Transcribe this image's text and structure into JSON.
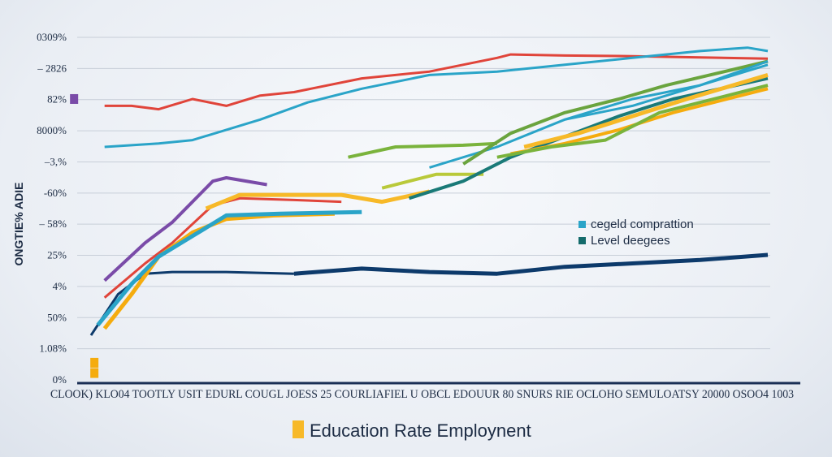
{
  "chart_data": {
    "type": "line",
    "title": "Education Rate Employnent",
    "ylabel": "ONGTIE% ADIE",
    "xlabel_text": "CLOOK) KLO04 TOOTLY USIT EDURL COUGL JOESS 25 COURLIAFIEL U OBCL EDOUUR 80 SNURS RIE OCLOHO SEMULOATSY 20000 OSOO4 1003",
    "ytick_labels": [
      "0309%",
      "– 2826",
      "82%",
      "8000%",
      "–3,%",
      "-60%",
      "– 58%",
      "25%",
      "4%",
      "50%",
      "1.08%",
      "0%"
    ],
    "x_domain": [
      0,
      100
    ],
    "y_domain": [
      0,
      100
    ],
    "legend": {
      "position": "right",
      "items": [
        {
          "label": "cegeld comprattion",
          "color": "#2aa4c8"
        },
        {
          "label": "Level deegees",
          "color": "#146b6b"
        }
      ]
    },
    "colors": {
      "red": "#e0443a",
      "teal": "#2aa4c8",
      "navy": "#0d3a6b",
      "purple": "#7a4ba8",
      "orange": "#f5ac0e",
      "yellow": "#f7b928",
      "green": "#7ab33c",
      "olive": "#6aa43e",
      "darkteal": "#1a7a78",
      "lime": "#b9c93a",
      "axis": "#1a2f55",
      "grid": "#c7ced8"
    },
    "series": [
      {
        "color_key": "red",
        "width": 3,
        "points": [
          [
            2,
            80
          ],
          [
            6,
            80
          ],
          [
            10,
            79
          ],
          [
            15,
            82
          ],
          [
            20,
            80
          ],
          [
            25,
            83
          ],
          [
            30,
            84
          ],
          [
            40,
            88
          ],
          [
            50,
            90
          ],
          [
            60,
            94
          ],
          [
            62,
            95
          ],
          [
            70,
            94.7
          ],
          [
            80,
            94.5
          ],
          [
            100,
            93.8
          ]
        ]
      },
      {
        "color_key": "teal",
        "width": 3,
        "points": [
          [
            2,
            68
          ],
          [
            10,
            69
          ],
          [
            15,
            70
          ],
          [
            25,
            76
          ],
          [
            32,
            81
          ],
          [
            40,
            85
          ],
          [
            50,
            89
          ],
          [
            60,
            90
          ],
          [
            70,
            92
          ],
          [
            80,
            94
          ],
          [
            90,
            96
          ],
          [
            97,
            97
          ],
          [
            100,
            96
          ]
        ]
      },
      {
        "color_key": "teal",
        "width": 3,
        "points": [
          [
            50,
            62
          ],
          [
            60,
            68
          ],
          [
            70,
            76
          ],
          [
            80,
            82
          ],
          [
            90,
            86
          ],
          [
            100,
            92
          ]
        ]
      },
      {
        "color_key": "navy",
        "width": 5,
        "points": [
          [
            30,
            31
          ],
          [
            40,
            32.5
          ],
          [
            50,
            31.5
          ],
          [
            60,
            31
          ],
          [
            70,
            33
          ],
          [
            80,
            34
          ],
          [
            90,
            35
          ],
          [
            100,
            36.5
          ]
        ]
      },
      {
        "color_key": "navy",
        "width": 3,
        "points": [
          [
            0,
            13
          ],
          [
            4,
            25
          ],
          [
            8,
            31
          ],
          [
            12,
            31.5
          ],
          [
            20,
            31.5
          ],
          [
            30,
            31
          ]
        ]
      },
      {
        "color_key": "purple",
        "width": 4,
        "points": [
          [
            2,
            29
          ],
          [
            8,
            40
          ],
          [
            12,
            46
          ],
          [
            18,
            58
          ],
          [
            20,
            59
          ],
          [
            26,
            57
          ]
        ]
      },
      {
        "color_key": "red",
        "width": 3,
        "points": [
          [
            2,
            24
          ],
          [
            8,
            34
          ],
          [
            12,
            40
          ],
          [
            18,
            51
          ],
          [
            22,
            53
          ],
          [
            30,
            52.5
          ],
          [
            37,
            52
          ]
        ]
      },
      {
        "color_key": "orange",
        "width": 5,
        "points": [
          [
            2,
            15
          ],
          [
            6,
            25
          ],
          [
            10,
            36
          ],
          [
            15,
            43
          ],
          [
            20,
            47
          ],
          [
            27,
            48
          ],
          [
            36,
            48.5
          ]
        ]
      },
      {
        "color_key": "yellow",
        "width": 5,
        "points": [
          [
            17,
            50
          ],
          [
            22,
            54
          ],
          [
            29,
            54
          ],
          [
            37,
            54
          ],
          [
            43,
            52
          ],
          [
            50,
            55
          ]
        ]
      },
      {
        "color_key": "teal",
        "width": 5,
        "points": [
          [
            1,
            16
          ],
          [
            6,
            28
          ],
          [
            10,
            36
          ],
          [
            15,
            42
          ],
          [
            20,
            48
          ],
          [
            28,
            48.5
          ],
          [
            40,
            49
          ]
        ]
      },
      {
        "color_key": "green",
        "width": 4,
        "points": [
          [
            38,
            65
          ],
          [
            45,
            68
          ],
          [
            55,
            68.5
          ],
          [
            60,
            69
          ]
        ]
      },
      {
        "color_key": "lime",
        "width": 4,
        "points": [
          [
            43,
            56
          ],
          [
            51,
            60
          ],
          [
            58,
            60
          ]
        ]
      },
      {
        "color_key": "olive",
        "width": 4,
        "points": [
          [
            55,
            63
          ],
          [
            62,
            72
          ],
          [
            70,
            78
          ],
          [
            78,
            82
          ],
          [
            85,
            86
          ],
          [
            100,
            93
          ]
        ]
      },
      {
        "color_key": "darkteal",
        "width": 4,
        "points": [
          [
            47,
            53
          ],
          [
            55,
            58
          ],
          [
            62,
            65
          ],
          [
            70,
            71
          ],
          [
            78,
            77
          ],
          [
            86,
            82
          ],
          [
            100,
            88
          ]
        ]
      },
      {
        "color_key": "yellow",
        "width": 5,
        "points": [
          [
            64,
            68
          ],
          [
            72,
            72
          ],
          [
            80,
            77
          ],
          [
            88,
            82
          ],
          [
            100,
            89
          ]
        ]
      },
      {
        "color_key": "orange",
        "width": 4,
        "points": [
          [
            62,
            66
          ],
          [
            70,
            69
          ],
          [
            78,
            73
          ],
          [
            86,
            78
          ],
          [
            100,
            85
          ]
        ]
      },
      {
        "color_key": "green",
        "width": 4,
        "points": [
          [
            60,
            65
          ],
          [
            68,
            68
          ],
          [
            76,
            70
          ],
          [
            84,
            78
          ],
          [
            100,
            86
          ]
        ]
      },
      {
        "color_key": "teal",
        "width": 3,
        "points": [
          [
            70,
            76
          ],
          [
            80,
            80
          ],
          [
            90,
            86
          ],
          [
            100,
            93
          ]
        ]
      }
    ],
    "markers": [
      {
        "color_key": "purple",
        "value_x": -2.5,
        "value_y": 82
      },
      {
        "color_key": "orange",
        "value_x": 0.5,
        "value_y": 2
      },
      {
        "color_key": "orange",
        "value_x": 0.5,
        "value_y": 5
      }
    ]
  }
}
